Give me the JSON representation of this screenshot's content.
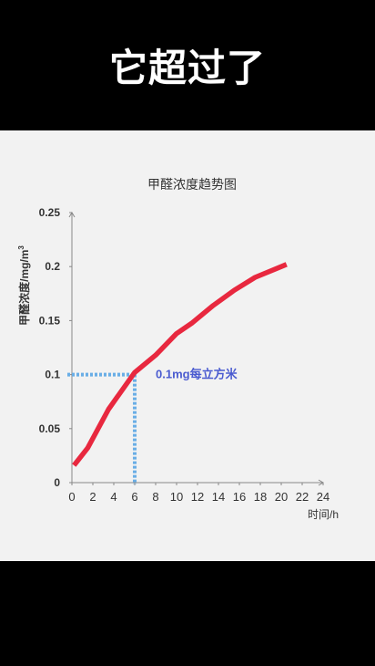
{
  "headline": "它超过了",
  "colors": {
    "background": "#000000",
    "panel": "#f2f2f2",
    "series": "#e8283f",
    "threshold_line": "#6aaee6",
    "threshold_label": "#4a5bd0",
    "axis": "#888888",
    "text": "#333333"
  },
  "chart_data": {
    "type": "line",
    "title": "甲醛浓度趋势图",
    "ylabel_main": "甲醛浓度/mg/m",
    "ylabel_sup": "3",
    "xlabel": "时间/h",
    "xlim": [
      0,
      24
    ],
    "ylim": [
      0,
      0.25
    ],
    "x_ticks": [
      "0",
      "2",
      "4",
      "6",
      "8",
      "10",
      "12",
      "14",
      "16",
      "18",
      "20",
      "22",
      "24"
    ],
    "y_ticks": [
      "0",
      "0.05",
      "0.1",
      "0.15",
      "0.2",
      "0.25"
    ],
    "x_tick_values": [
      0,
      2,
      4,
      6,
      8,
      10,
      12,
      14,
      16,
      18,
      20,
      22,
      24
    ],
    "y_tick_values": [
      0,
      0.05,
      0.1,
      0.15,
      0.2,
      0.25
    ],
    "grid": false,
    "legend": "none",
    "series": [
      {
        "x": [
          0.2,
          1.5,
          3.5,
          6.0,
          8.0,
          10.0,
          11.5,
          13.5,
          15.5,
          17.5,
          19.5,
          20.5
        ],
        "y": [
          0.016,
          0.032,
          0.068,
          0.102,
          0.118,
          0.138,
          0.148,
          0.164,
          0.178,
          0.19,
          0.198,
          0.202
        ]
      }
    ],
    "annotation": {
      "text": "0.1mg每立方米",
      "x": 6,
      "y": 0.1
    }
  }
}
